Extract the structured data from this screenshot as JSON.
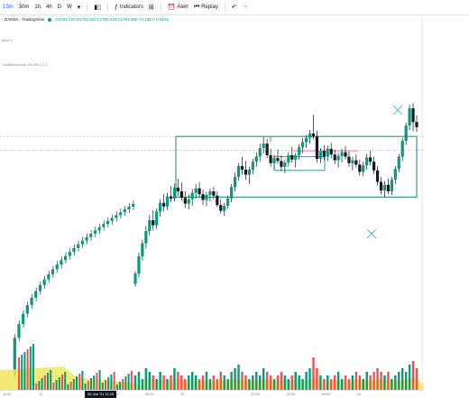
{
  "toolbar": {
    "timeframes": [
      "15m",
      "30m",
      "1h",
      "4h",
      "D",
      "W"
    ],
    "active_timeframe": "15m",
    "dropdown_icon": "chevron-down-icon",
    "bar_type_icon": "candles-icon",
    "indicators_icon": "indicators-icon",
    "indicators_label": "Indicators",
    "templates_icon": "layout-grid-icon",
    "alert_icon": "alarm-clock-icon",
    "alert_label": "Alert",
    "replay_icon": "replay-icon",
    "replay_label": "Replay",
    "undo_icon": "undo-icon",
    "redo_icon": "redo-icon"
  },
  "legend": {
    "symbol": "· OANDA · TradingView",
    "ohlc": "O1751.720 H1751.910 L1750.440 C1751.850 +0.130 (+0.01%)"
  },
  "indicators": [
    {
      "label": "bsOr 1"
    },
    {
      "label": "TrailStone Auto 15 Left 2 1 1"
    }
  ],
  "time_axis": {
    "ticks": [
      "8:30",
      "11",
      "",
      "12:00",
      "05:00",
      "13",
      "",
      "22:00",
      "23:00",
      "06:00",
      "16",
      ""
    ],
    "current_label": "06 Jan '21  11:15"
  },
  "colors": {
    "up": "#089981",
    "down": "#131722",
    "wick": "#131722",
    "box": "#3e9a8c",
    "resistance_line": "#f4b6c2",
    "cross": "#5fb3d4",
    "volume_area": "#f5e65e",
    "grid": "#b2b5be",
    "accent": "#2962ff"
  },
  "chart_data": {
    "type": "candlestick",
    "series": [
      {
        "name": "price",
        "points": [
          [
            1738.2,
            1739.9,
            1737.8,
            1739.6
          ],
          [
            1739.6,
            1742.5,
            1739.1,
            1742.0
          ],
          [
            1742.0,
            1744.3,
            1741.4,
            1743.8
          ],
          [
            1743.8,
            1746.2,
            1743.1,
            1745.5
          ],
          [
            1745.5,
            1747.7,
            1744.9,
            1747.0
          ],
          [
            1747.0,
            1748.4,
            1745.6,
            1746.3
          ],
          [
            1746.3,
            1748.6,
            1745.8,
            1748.2
          ],
          [
            1748.2,
            1749.9,
            1747.5,
            1749.4
          ],
          [
            1749.4,
            1750.6,
            1748.2,
            1748.9
          ],
          [
            1748.9,
            1750.8,
            1748.4,
            1750.3
          ],
          [
            1750.3,
            1751.7,
            1749.5,
            1750.0
          ],
          [
            1750.0,
            1752.1,
            1749.6,
            1751.5
          ],
          [
            1751.5,
            1752.7,
            1750.4,
            1751.0
          ],
          [
            1751.0,
            1752.2,
            1749.7,
            1750.1
          ],
          [
            1750.1,
            1751.0,
            1748.7,
            1749.3
          ],
          [
            1749.3,
            1750.6,
            1748.5,
            1749.9
          ],
          [
            1749.9,
            1751.3,
            1749.0,
            1750.8
          ],
          [
            1750.8,
            1752.0,
            1750.0,
            1751.4
          ],
          [
            1751.4,
            1752.3,
            1750.1,
            1750.6
          ],
          [
            1750.6,
            1751.2,
            1749.1,
            1749.8
          ],
          [
            1749.8,
            1750.9,
            1748.9,
            1750.5
          ],
          [
            1750.5,
            1751.4,
            1749.6,
            1751.0
          ],
          [
            1751.0,
            1751.6,
            1749.9,
            1750.4
          ],
          [
            1750.4,
            1751.0,
            1748.8,
            1749.1
          ],
          [
            1749.1,
            1749.9,
            1747.9,
            1748.3
          ],
          [
            1748.3,
            1749.4,
            1747.6,
            1749.0
          ],
          [
            1749.0,
            1750.4,
            1748.6,
            1750.0
          ],
          [
            1750.0,
            1752.0,
            1749.5,
            1751.6
          ],
          [
            1751.6,
            1753.6,
            1751.0,
            1753.0
          ],
          [
            1753.0,
            1754.9,
            1752.5,
            1754.5
          ],
          [
            1754.5,
            1755.8,
            1753.3,
            1754.0
          ],
          [
            1754.0,
            1755.2,
            1752.6,
            1753.3
          ],
          [
            1753.3,
            1754.4,
            1752.0,
            1754.0
          ],
          [
            1754.0,
            1755.5,
            1753.4,
            1755.1
          ],
          [
            1755.1,
            1756.4,
            1754.4,
            1755.8
          ],
          [
            1755.8,
            1757.6,
            1755.1,
            1757.0
          ],
          [
            1757.0,
            1758.5,
            1756.2,
            1757.6
          ],
          [
            1757.6,
            1758.3,
            1755.6,
            1756.0
          ],
          [
            1756.0,
            1756.9,
            1754.4,
            1754.9
          ],
          [
            1754.9,
            1756.1,
            1754.0,
            1755.6
          ],
          [
            1755.6,
            1756.8,
            1754.8,
            1755.2
          ],
          [
            1755.2,
            1756.0,
            1753.8,
            1754.4
          ],
          [
            1754.4,
            1755.4,
            1753.5,
            1755.0
          ],
          [
            1755.0,
            1756.4,
            1754.4,
            1756.0
          ],
          [
            1756.0,
            1757.2,
            1755.0,
            1755.4
          ],
          [
            1755.4,
            1756.3,
            1754.3,
            1756.0
          ],
          [
            1756.0,
            1757.5,
            1755.4,
            1757.1
          ],
          [
            1757.1,
            1758.4,
            1756.3,
            1757.8
          ],
          [
            1757.8,
            1758.8,
            1757.0,
            1758.4
          ],
          [
            1758.4,
            1759.5,
            1757.6,
            1759.0
          ],
          [
            1759.0,
            1761.6,
            1758.2,
            1758.6
          ],
          [
            1758.6,
            1759.4,
            1755.0,
            1755.5
          ],
          [
            1755.5,
            1757.0,
            1754.9,
            1756.6
          ],
          [
            1756.6,
            1757.4,
            1755.3,
            1755.8
          ],
          [
            1755.8,
            1757.3,
            1755.2,
            1756.9
          ],
          [
            1756.9,
            1757.7,
            1755.6,
            1756.1
          ],
          [
            1756.1,
            1756.8,
            1754.8,
            1755.3
          ],
          [
            1755.3,
            1756.3,
            1754.3,
            1755.9
          ],
          [
            1755.9,
            1756.9,
            1755.0,
            1756.4
          ],
          [
            1756.4,
            1757.3,
            1755.4,
            1755.8
          ],
          [
            1755.8,
            1756.5,
            1754.4,
            1754.9
          ],
          [
            1754.9,
            1755.8,
            1753.9,
            1755.3
          ],
          [
            1755.3,
            1756.1,
            1754.3,
            1754.7
          ],
          [
            1754.7,
            1755.4,
            1753.2,
            1753.7
          ],
          [
            1753.7,
            1755.1,
            1753.1,
            1754.6
          ],
          [
            1754.6,
            1756.2,
            1754.0,
            1755.7
          ],
          [
            1755.7,
            1756.6,
            1754.6,
            1755.1
          ],
          [
            1755.1,
            1755.8,
            1753.4,
            1753.9
          ],
          [
            1753.9,
            1754.5,
            1751.8,
            1752.3
          ],
          [
            1752.3,
            1753.0,
            1750.6,
            1751.1
          ],
          [
            1751.1,
            1752.4,
            1750.2,
            1751.9
          ],
          [
            1751.9,
            1752.8,
            1750.6,
            1751.0
          ],
          [
            1751.0,
            1753.0,
            1750.5,
            1752.6
          ],
          [
            1752.6,
            1754.5,
            1752.0,
            1754.1
          ],
          [
            1754.1,
            1756.2,
            1753.6,
            1755.8
          ],
          [
            1755.8,
            1758.4,
            1755.2,
            1758.0
          ],
          [
            1758.0,
            1760.5,
            1757.4,
            1760.1
          ],
          [
            1760.1,
            1763.0,
            1759.5,
            1762.5
          ],
          [
            1762.5,
            1763.2,
            1759.3,
            1760.6
          ],
          [
            1760.6,
            1761.5,
            1759.2,
            1759.9
          ]
        ]
      }
    ],
    "volume": [
      4,
      5,
      3,
      6,
      5,
      4,
      3,
      5,
      4,
      3,
      4,
      6,
      5,
      4,
      3,
      4,
      5,
      4,
      3,
      4,
      5,
      3,
      4,
      3,
      5,
      4,
      3,
      5,
      6,
      7,
      5,
      4,
      3,
      4,
      5,
      4,
      6,
      5,
      4,
      3,
      4,
      5,
      4,
      3,
      4,
      5,
      4,
      3,
      5,
      6,
      9,
      6,
      4,
      3,
      4,
      3,
      4,
      5,
      3,
      4,
      3,
      4,
      5,
      4,
      3,
      5,
      4,
      5,
      6,
      5,
      4,
      5,
      3,
      4,
      5,
      6,
      5,
      7,
      8,
      6
    ],
    "annotations": {
      "range_box": {
        "high": 1758.6,
        "low": 1750.2
      },
      "inner_box": {
        "high": 1755.8,
        "low": 1753.9
      },
      "resistance_line": 1756.6,
      "dashed_levels": [
        1758.6,
        1756.7
      ]
    },
    "ylim": [
      1690,
      1769
    ],
    "grid": false
  }
}
